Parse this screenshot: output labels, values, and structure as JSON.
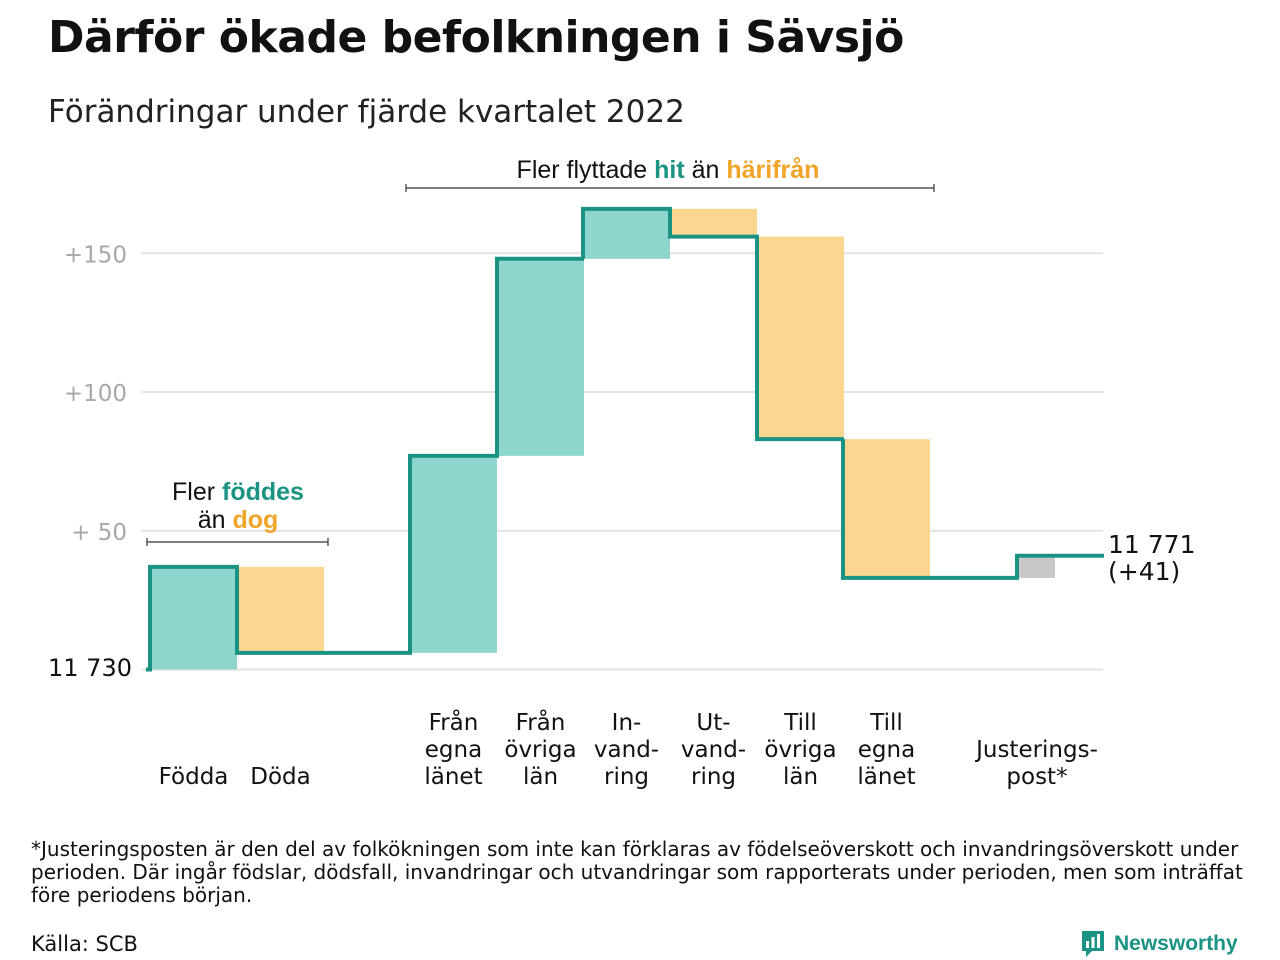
{
  "title": "Därför ökade befolkningen i Sävsjö",
  "subtitle": "Förändringar under fjärde kvartalet 2022",
  "colors": {
    "teal": "#1b9384",
    "teal_fill": "#8dd5cd",
    "orange": "#f0a428",
    "orange_fill": "#fad690",
    "gray_fill": "#c8c8c8",
    "grid": "#e2e2e2",
    "axis_text": "#a8a8a8"
  },
  "annotations": {
    "migration": {
      "pre": "Fler flyttade ",
      "hi1": "hit",
      "mid": " än ",
      "hi2": "härifrån"
    },
    "births": {
      "pre1": "Fler ",
      "hi1": "föddes",
      "pre2": "än ",
      "hi2": "dog"
    }
  },
  "chart_data": {
    "type": "waterfall",
    "base_label": "11 730",
    "end_label_1": "11 771",
    "end_label_2": "(+41)",
    "y_ticks": [
      {
        "value": 50,
        "label": "+ 50"
      },
      {
        "value": 100,
        "label": "+100"
      },
      {
        "value": 150,
        "label": "+150"
      }
    ],
    "grid": true,
    "steps": [
      {
        "label_lines": [
          "Födda"
        ],
        "start": 0,
        "end": 37,
        "kind": "in"
      },
      {
        "label_lines": [
          "Döda"
        ],
        "start": 37,
        "end": 6,
        "kind": "out"
      },
      {
        "label_lines": [
          "Från",
          "egna",
          "länet"
        ],
        "start": 6,
        "end": 77,
        "kind": "in"
      },
      {
        "label_lines": [
          "Från",
          "övriga",
          "län"
        ],
        "start": 77,
        "end": 148,
        "kind": "in"
      },
      {
        "label_lines": [
          "In-",
          "vand-",
          "ring"
        ],
        "start": 148,
        "end": 166,
        "kind": "in"
      },
      {
        "label_lines": [
          "Ut-",
          "vand-",
          "ring"
        ],
        "start": 166,
        "end": 156,
        "kind": "out"
      },
      {
        "label_lines": [
          "Till",
          "övriga",
          "län"
        ],
        "start": 156,
        "end": 83,
        "kind": "out"
      },
      {
        "label_lines": [
          "Till",
          "egna",
          "länet"
        ],
        "start": 83,
        "end": 33,
        "kind": "out"
      },
      {
        "label_lines": [
          "Justerings-",
          "post*"
        ],
        "start": 33,
        "end": 41,
        "kind": "adjust"
      }
    ]
  },
  "footnote": "*Justeringsposten är den del av folkökningen som inte kan förklaras av födelseöverskott och invandringsöverskott under perioden. Där ingår födslar, dödsfall, invandringar och utvandringar som rapporterats under perioden, men som inträffat före periodens början.",
  "source": "Källa: SCB",
  "brand": {
    "name": "Newsworthy",
    "logo_icon": "bar-chart-icon"
  }
}
